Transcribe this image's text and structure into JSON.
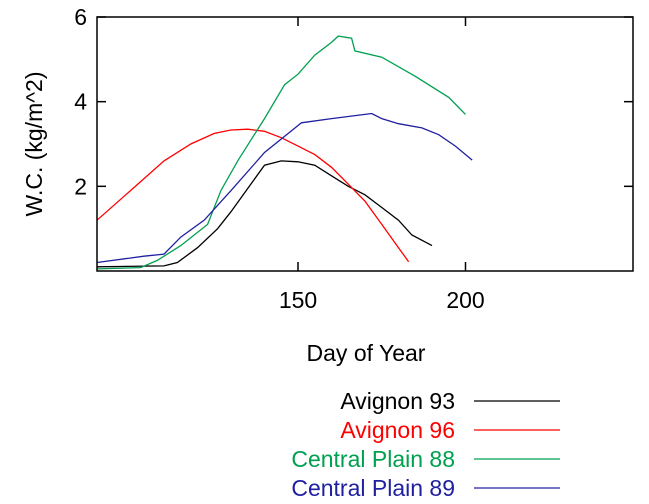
{
  "chart_data": {
    "type": "line",
    "title": "",
    "xlabel": "Day of Year",
    "ylabel": "W.C. (kg/m^2)",
    "xlim": [
      90,
      250
    ],
    "ylim": [
      0,
      6
    ],
    "x_ticks": [
      150,
      200
    ],
    "x_tick_labels": [
      "150",
      "200"
    ],
    "y_ticks": [
      2,
      4,
      6
    ],
    "y_tick_labels": [
      "2",
      "4",
      "6"
    ],
    "grid": false,
    "legend_position": "bottom",
    "series": [
      {
        "name": "Avignon 93",
        "color": "#000000",
        "points": [
          [
            90,
            0.1
          ],
          [
            110,
            0.12
          ],
          [
            114,
            0.2
          ],
          [
            120,
            0.55
          ],
          [
            126,
            1.0
          ],
          [
            130,
            1.4
          ],
          [
            135,
            1.95
          ],
          [
            140,
            2.5
          ],
          [
            145,
            2.6
          ],
          [
            150,
            2.58
          ],
          [
            155,
            2.5
          ],
          [
            160,
            2.25
          ],
          [
            165,
            2.0
          ],
          [
            170,
            1.8
          ],
          [
            175,
            1.5
          ],
          [
            180,
            1.2
          ],
          [
            184,
            0.85
          ],
          [
            190,
            0.6
          ]
        ]
      },
      {
        "name": "Avignon 96",
        "color": "#ff0000",
        "points": [
          [
            90,
            1.2
          ],
          [
            100,
            1.9
          ],
          [
            110,
            2.6
          ],
          [
            118,
            3.0
          ],
          [
            125,
            3.25
          ],
          [
            130,
            3.33
          ],
          [
            135,
            3.35
          ],
          [
            140,
            3.3
          ],
          [
            145,
            3.15
          ],
          [
            150,
            2.95
          ],
          [
            155,
            2.75
          ],
          [
            160,
            2.45
          ],
          [
            165,
            2.05
          ],
          [
            170,
            1.65
          ],
          [
            175,
            1.1
          ],
          [
            180,
            0.55
          ],
          [
            183,
            0.22
          ]
        ]
      },
      {
        "name": "Central Plain 88",
        "color": "#00a050",
        "points": [
          [
            90,
            0.05
          ],
          [
            103,
            0.08
          ],
          [
            108,
            0.25
          ],
          [
            115,
            0.6
          ],
          [
            123,
            1.1
          ],
          [
            127,
            1.9
          ],
          [
            132,
            2.6
          ],
          [
            140,
            3.6
          ],
          [
            146,
            4.4
          ],
          [
            150,
            4.65
          ],
          [
            155,
            5.1
          ],
          [
            160,
            5.4
          ],
          [
            162,
            5.55
          ],
          [
            166,
            5.5
          ],
          [
            167,
            5.2
          ],
          [
            175,
            5.05
          ],
          [
            185,
            4.6
          ],
          [
            195,
            4.1
          ],
          [
            200,
            3.7
          ]
        ]
      },
      {
        "name": "Central Plain 89",
        "color": "#2020a0",
        "points": [
          [
            90,
            0.2
          ],
          [
            104,
            0.35
          ],
          [
            110,
            0.4
          ],
          [
            115,
            0.8
          ],
          [
            122,
            1.2
          ],
          [
            130,
            1.9
          ],
          [
            140,
            2.8
          ],
          [
            151,
            3.5
          ],
          [
            160,
            3.6
          ],
          [
            170,
            3.7
          ],
          [
            172,
            3.72
          ],
          [
            175,
            3.6
          ],
          [
            180,
            3.48
          ],
          [
            187,
            3.38
          ],
          [
            192,
            3.22
          ],
          [
            197,
            2.95
          ],
          [
            202,
            2.62
          ]
        ]
      }
    ]
  }
}
